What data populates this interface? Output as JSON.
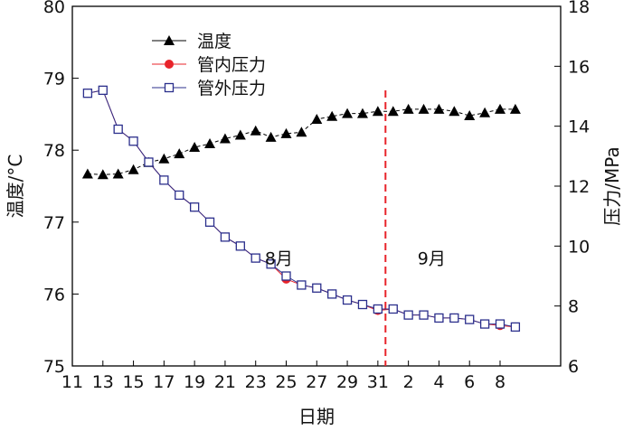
{
  "chart_data": {
    "type": "line",
    "xlabel": "日期",
    "ylabel_left": "温度/°C",
    "ylabel_right": "压力/MPa",
    "ylim_left": [
      75,
      80
    ],
    "ylim_right": [
      6,
      18
    ],
    "yticks_left": [
      75,
      76,
      77,
      78,
      79,
      80
    ],
    "yticks_right": [
      6,
      8,
      10,
      12,
      14,
      16,
      18
    ],
    "x_tick_labels": [
      "11",
      "13",
      "15",
      "17",
      "19",
      "21",
      "23",
      "25",
      "27",
      "29",
      "31",
      "2",
      "4",
      "6",
      "8"
    ],
    "x_tick_dates": [
      "08-11",
      "08-13",
      "08-15",
      "08-17",
      "08-19",
      "08-21",
      "08-23",
      "08-25",
      "08-27",
      "08-29",
      "08-31",
      "09-02",
      "09-04",
      "09-06",
      "09-08"
    ],
    "dates": [
      "08-12",
      "08-13",
      "08-14",
      "08-15",
      "08-16",
      "08-17",
      "08-18",
      "08-19",
      "08-20",
      "08-21",
      "08-22",
      "08-23",
      "08-24",
      "08-25",
      "08-26",
      "08-27",
      "08-28",
      "08-29",
      "08-30",
      "08-31",
      "09-01",
      "09-02",
      "09-03",
      "09-04",
      "09-05",
      "09-06",
      "09-07",
      "09-08",
      "09-09"
    ],
    "series": [
      {
        "name": "温度",
        "axis": "left",
        "marker": "triangle",
        "color": "#000000",
        "values": [
          77.67,
          77.66,
          77.67,
          77.73,
          77.83,
          77.88,
          77.95,
          78.04,
          78.09,
          78.16,
          78.21,
          78.27,
          78.18,
          78.23,
          78.25,
          78.43,
          78.47,
          78.51,
          78.51,
          78.54,
          78.54,
          78.57,
          78.57,
          78.57,
          78.54,
          78.48,
          78.52,
          78.57,
          78.57
        ]
      },
      {
        "name": "管内压力",
        "axis": "right",
        "marker": "circle",
        "color": "#e8232a",
        "values": [
          15.1,
          15.2,
          13.9,
          13.5,
          12.8,
          12.2,
          11.7,
          11.3,
          10.8,
          10.3,
          10.0,
          9.6,
          9.4,
          8.9,
          8.7,
          8.6,
          8.4,
          8.2,
          8.05,
          7.85,
          7.9,
          7.7,
          7.7,
          7.6,
          7.6,
          7.55,
          7.4,
          7.35,
          7.3
        ]
      },
      {
        "name": "管外压力",
        "axis": "right",
        "marker": "square",
        "color": "#2b2f8c",
        "values": [
          15.1,
          15.2,
          13.9,
          13.5,
          12.8,
          12.2,
          11.7,
          11.3,
          10.8,
          10.3,
          10.0,
          9.6,
          9.4,
          9.0,
          8.7,
          8.6,
          8.4,
          8.2,
          8.05,
          7.9,
          7.9,
          7.7,
          7.7,
          7.6,
          7.6,
          7.55,
          7.4,
          7.4,
          7.3
        ]
      }
    ],
    "divider": {
      "date": "09-01",
      "color": "#e8232a",
      "style": "dashed"
    },
    "month_labels": [
      {
        "text": "8月",
        "date": "08-26",
        "value_left": 76.5
      },
      {
        "text": "9月",
        "date": "09-05",
        "value_left": 76.5
      }
    ],
    "legend_position": "top-left",
    "grid": false
  }
}
